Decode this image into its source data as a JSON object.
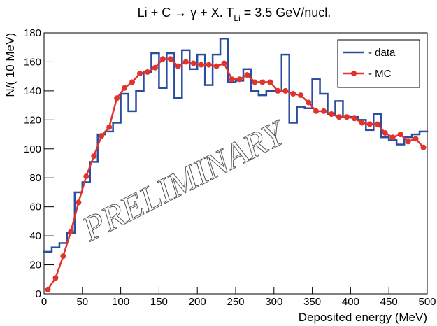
{
  "chart_data": {
    "type": "histogram",
    "title": {
      "main": "Li + C → γ + X. T",
      "sub": "Li",
      "tail": " = 3.5 GeV/nucl."
    },
    "x_label": "Deposited energy (MeV)",
    "y_label": "N/( 10 MeV)",
    "annotation": "PRELIMINARY",
    "bins": [
      0,
      10,
      20,
      30,
      40,
      50,
      60,
      70,
      80,
      90,
      100,
      110,
      120,
      130,
      140,
      150,
      160,
      170,
      180,
      190,
      200,
      210,
      220,
      230,
      240,
      250,
      260,
      270,
      280,
      290,
      300,
      310,
      320,
      330,
      340,
      350,
      360,
      370,
      380,
      390,
      400,
      410,
      420,
      430,
      440,
      450,
      460,
      470,
      480,
      490,
      500
    ],
    "series": [
      {
        "name": "- data",
        "color": "#2b4da0",
        "style": "step",
        "values": [
          29,
          32,
          35,
          42,
          70,
          77,
          91,
          110,
          112,
          118,
          138,
          126,
          140,
          153,
          166,
          142,
          166,
          135,
          168,
          155,
          165,
          144,
          165,
          176,
          146,
          147,
          155,
          140,
          137,
          140,
          140,
          165,
          118,
          129,
          128,
          148,
          138,
          124,
          133,
          122,
          122,
          120,
          113,
          124,
          108,
          106,
          103,
          108,
          110,
          112
        ]
      },
      {
        "name": "- MC",
        "color": "#e0332b",
        "style": "line-markers",
        "x": [
          5,
          15,
          25,
          35,
          45,
          55,
          65,
          75,
          85,
          95,
          105,
          115,
          125,
          135,
          145,
          155,
          165,
          175,
          185,
          195,
          205,
          215,
          225,
          235,
          245,
          255,
          265,
          275,
          285,
          295,
          305,
          315,
          325,
          335,
          345,
          355,
          365,
          375,
          385,
          395,
          405,
          415,
          425,
          435,
          445,
          455,
          465,
          475,
          485,
          495
        ],
        "values": [
          3,
          11,
          26,
          43,
          63,
          81,
          95,
          109,
          115,
          135,
          142,
          146,
          152,
          153,
          156,
          162,
          162,
          157,
          160,
          159,
          158,
          158,
          157,
          159,
          148,
          148,
          151,
          146,
          146,
          146,
          140,
          140,
          138,
          137,
          132,
          126,
          126,
          124,
          122,
          122,
          121,
          118,
          117,
          117,
          111,
          108,
          110,
          105,
          107,
          101
        ]
      }
    ],
    "xlim": [
      0,
      500
    ],
    "xticks": [
      0,
      50,
      100,
      150,
      200,
      250,
      300,
      350,
      400,
      450,
      500
    ],
    "ylim": [
      0,
      180
    ],
    "yticks": [
      0,
      20,
      40,
      60,
      80,
      100,
      120,
      140,
      160,
      180
    ],
    "legend": "top-right"
  }
}
